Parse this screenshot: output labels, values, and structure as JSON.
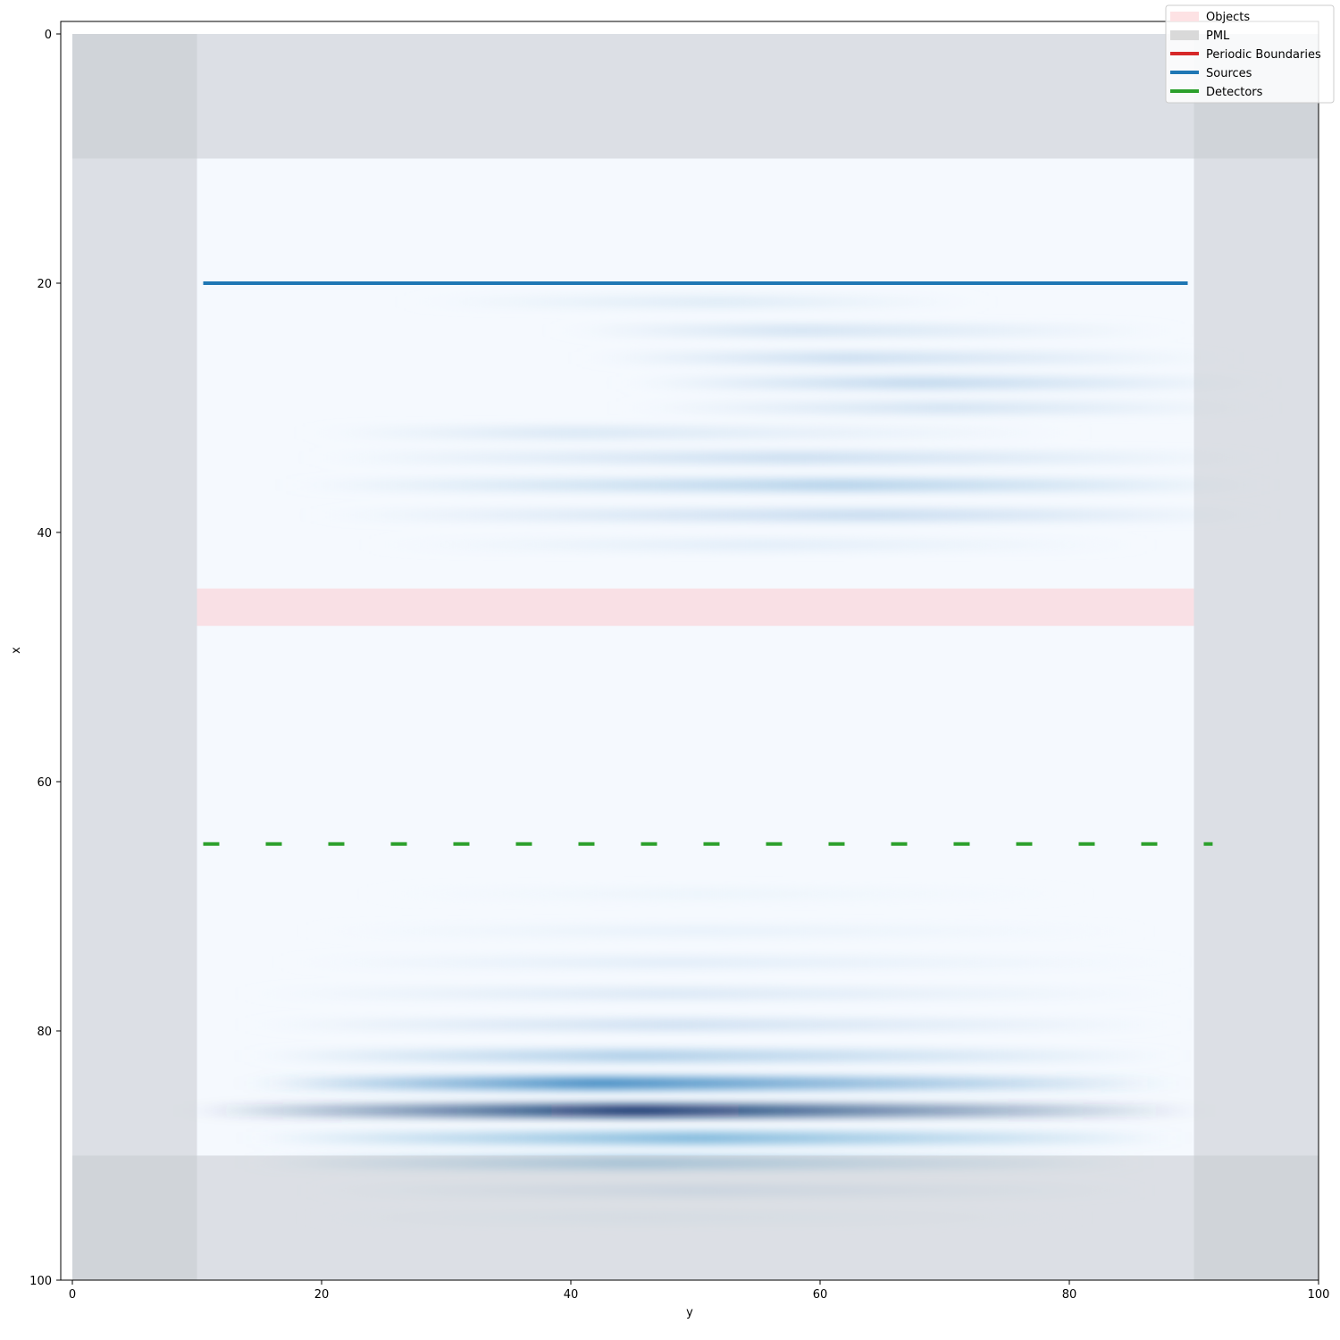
{
  "chart_data": {
    "type": "heatmap",
    "title": "",
    "xlabel": "y",
    "ylabel": "x",
    "xlim": [
      -0.5,
      100
    ],
    "ylim": [
      100,
      -1
    ],
    "y_axis_inverted": true,
    "xticks": [
      0,
      20,
      40,
      60,
      80,
      100
    ],
    "yticks": [
      0,
      20,
      40,
      60,
      80,
      100
    ],
    "colormap": "Blues",
    "legend": {
      "placement": "top-right",
      "entries": [
        {
          "label": "Objects",
          "kind": "patch",
          "color": "#fde2e4"
        },
        {
          "label": "PML",
          "kind": "patch",
          "color": "#d9d9d9"
        },
        {
          "label": "Periodic Boundaries",
          "kind": "line",
          "color": "#d62728"
        },
        {
          "label": "Sources",
          "kind": "line",
          "color": "#1f77b4"
        },
        {
          "label": "Detectors",
          "kind": "line",
          "color": "#2ca02c"
        }
      ]
    },
    "pml_regions": [
      {
        "y": [
          0,
          10
        ],
        "x": [
          0,
          100
        ]
      },
      {
        "y": [
          90,
          100
        ],
        "x": [
          0,
          100
        ]
      },
      {
        "y": [
          0,
          100
        ],
        "x": [
          0,
          10
        ]
      },
      {
        "y": [
          0,
          100
        ],
        "x": [
          90,
          100
        ]
      }
    ],
    "pml_color": "#c6cacf",
    "objects": [
      {
        "y": [
          10,
          90
        ],
        "x": [
          44.5,
          47.5
        ],
        "color": "#fadde2"
      }
    ],
    "sources": [
      {
        "y": [
          10.5,
          89.5
        ],
        "x": 20,
        "color": "#1f77b4"
      }
    ],
    "detectors": [
      {
        "y": [
          10.5,
          91.5
        ],
        "x": 65,
        "color": "#2ca02c",
        "style": "dashed"
      }
    ],
    "field_bands": [
      {
        "x": 21.5,
        "y0": 28,
        "y1": 72,
        "peak_y": 52,
        "amplitude": 0.12
      },
      {
        "x": 23.8,
        "y0": 40,
        "y1": 88,
        "peak_y": 58,
        "amplitude": 0.18
      },
      {
        "x": 26.0,
        "y0": 42,
        "y1": 92,
        "peak_y": 62,
        "amplitude": 0.22
      },
      {
        "x": 28.0,
        "y0": 45,
        "y1": 95,
        "peak_y": 68,
        "amplitude": 0.26
      },
      {
        "x": 30.0,
        "y0": 45,
        "y1": 95,
        "peak_y": 70,
        "amplitude": 0.18
      },
      {
        "x": 32.0,
        "y0": 20,
        "y1": 80,
        "peak_y": 40,
        "amplitude": 0.15
      },
      {
        "x": 34.0,
        "y0": 20,
        "y1": 95,
        "peak_y": 58,
        "amplitude": 0.22
      },
      {
        "x": 36.2,
        "y0": 18,
        "y1": 95,
        "peak_y": 62,
        "amplitude": 0.3
      },
      {
        "x": 38.6,
        "y0": 20,
        "y1": 95,
        "peak_y": 64,
        "amplitude": 0.24
      },
      {
        "x": 41.0,
        "y0": 25,
        "y1": 85,
        "peak_y": 55,
        "amplitude": 0.1
      },
      {
        "x": 69.0,
        "y0": 25,
        "y1": 80,
        "peak_y": 50,
        "amplitude": 0.05
      },
      {
        "x": 72.0,
        "y0": 20,
        "y1": 85,
        "peak_y": 50,
        "amplitude": 0.07
      },
      {
        "x": 74.5,
        "y0": 18,
        "y1": 88,
        "peak_y": 48,
        "amplitude": 0.1
      },
      {
        "x": 77.0,
        "y0": 15,
        "y1": 88,
        "peak_y": 48,
        "amplitude": 0.14
      },
      {
        "x": 79.5,
        "y0": 15,
        "y1": 88,
        "peak_y": 48,
        "amplitude": 0.2
      },
      {
        "x": 82.0,
        "y0": 15,
        "y1": 88,
        "peak_y": 45,
        "amplitude": 0.32
      },
      {
        "x": 84.2,
        "y0": 15,
        "y1": 88,
        "peak_y": 42,
        "amplitude": 0.65
      },
      {
        "x": 86.4,
        "y0": 10,
        "y1": 90,
        "peak_y": 45,
        "amplitude": 1.0
      },
      {
        "x": 88.6,
        "y0": 15,
        "y1": 88,
        "peak_y": 50,
        "amplitude": 0.45
      },
      {
        "x": 90.6,
        "y0": 15,
        "y1": 85,
        "peak_y": 45,
        "amplitude": 0.45
      },
      {
        "x": 92.8,
        "y0": 20,
        "y1": 85,
        "peak_y": 50,
        "amplitude": 0.2
      },
      {
        "x": 95.0,
        "y0": 20,
        "y1": 80,
        "peak_y": 45,
        "amplitude": 0.08
      }
    ]
  }
}
